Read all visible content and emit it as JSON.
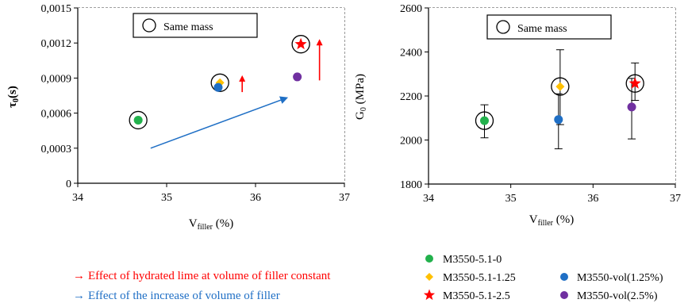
{
  "chart_data": [
    {
      "type": "scatter",
      "xlabel": "V_filler (%)",
      "ylabel": "τ0(s)",
      "xlim": [
        34,
        37
      ],
      "ylim": [
        0,
        0.0015
      ],
      "x_ticks": [
        "34",
        "35",
        "36",
        "37"
      ],
      "y_ticks": [
        "0",
        "0,0003",
        "0,0006",
        "0,0009",
        "0,0012",
        "0,0015"
      ],
      "grid": true,
      "legend_box": "Same mass",
      "series": [
        {
          "name": "M3550-5.1-0",
          "color": "#22b14c",
          "marker": "circle",
          "x": 34.68,
          "y": 0.00054,
          "circled": true
        },
        {
          "name": "M3550-5.1-1.25",
          "color": "#ffc000",
          "marker": "diamond",
          "x": 35.6,
          "y": 0.00086,
          "circled": true
        },
        {
          "name": "M3550-vol(1.25%)",
          "color": "#1f6fc5",
          "marker": "circle",
          "x": 35.58,
          "y": 0.00082,
          "circled": false
        },
        {
          "name": "M3550-5.1-2.5",
          "color": "#ff0000",
          "marker": "star",
          "x": 36.51,
          "y": 0.00119,
          "circled": true
        },
        {
          "name": "M3550-vol(2.5%)",
          "color": "#7030a0",
          "marker": "circle",
          "x": 36.47,
          "y": 0.00091,
          "circled": false
        }
      ],
      "annotations": [
        {
          "type": "arrow",
          "color": "#ff0000",
          "from": [
            35.85,
            0.00078
          ],
          "to": [
            35.85,
            0.00091
          ]
        },
        {
          "type": "arrow",
          "color": "#ff0000",
          "from": [
            36.72,
            0.00088
          ],
          "to": [
            36.72,
            0.00122
          ]
        },
        {
          "type": "arrow",
          "color": "#1f6fc5",
          "from": [
            34.82,
            0.0003
          ],
          "to": [
            36.35,
            0.00073
          ]
        }
      ]
    },
    {
      "type": "scatter",
      "xlabel": "V_filler (%)",
      "ylabel": "G0 (MPa)",
      "xlim": [
        34,
        37
      ],
      "ylim": [
        1800,
        2600
      ],
      "x_ticks": [
        "34",
        "35",
        "36",
        "37"
      ],
      "y_ticks": [
        "1800",
        "2000",
        "2200",
        "2400",
        "2600"
      ],
      "grid": true,
      "legend_box": "Same mass",
      "series": [
        {
          "name": "M3550-5.1-0",
          "color": "#22b14c",
          "marker": "circle",
          "x": 34.68,
          "y": 2088,
          "err": [
            2010,
            2160
          ],
          "circled": true
        },
        {
          "name": "M3550-5.1-1.25",
          "color": "#ffc000",
          "marker": "diamond",
          "x": 35.6,
          "y": 2243,
          "err": [
            2070,
            2410
          ],
          "circled": true
        },
        {
          "name": "M3550-vol(1.25%)",
          "color": "#1f6fc5",
          "marker": "circle",
          "x": 35.58,
          "y": 2093,
          "err": [
            1960,
            2210
          ],
          "circled": false
        },
        {
          "name": "M3550-5.1-2.5",
          "color": "#ff0000",
          "marker": "star",
          "x": 36.51,
          "y": 2257,
          "err": [
            2180,
            2350
          ],
          "circled": true
        },
        {
          "name": "M3550-vol(2.5%)",
          "color": "#7030a0",
          "marker": "circle",
          "x": 36.47,
          "y": 2150,
          "err": [
            2005,
            2280
          ],
          "circled": false
        }
      ]
    }
  ],
  "chart_text": {
    "left_ylabel_main": "τ",
    "left_ylabel_sub": "0",
    "left_ylabel_tail": "(s)",
    "right_ylabel_main": "G",
    "right_ylabel_sub": "0",
    "right_ylabel_tail": " (MPa)",
    "xlabel_main": "V",
    "xlabel_sub": "filler",
    "xlabel_tail": " (%)",
    "same_mass": "Same mass"
  },
  "legend": {
    "notes": [
      {
        "symbol": "→",
        "text": "Effect of hydrated lime  at volume of filler constant",
        "color": "#ff0000"
      },
      {
        "symbol": "→",
        "text": "Effect of the increase of volume of filler",
        "color": "#1f6fc5"
      }
    ],
    "items": [
      {
        "name": "M3550-5.1-0",
        "color": "#22b14c",
        "marker": "circle"
      },
      {
        "name": "M3550-5.1-1.25",
        "color": "#ffc000",
        "marker": "diamond"
      },
      {
        "name": "M3550-5.1-2.5",
        "color": "#ff0000",
        "marker": "star"
      },
      {
        "name": "M3550-vol(1.25%)",
        "color": "#1f6fc5",
        "marker": "circle"
      },
      {
        "name": "M3550-vol(2.5%)",
        "color": "#7030a0",
        "marker": "circle"
      }
    ]
  }
}
